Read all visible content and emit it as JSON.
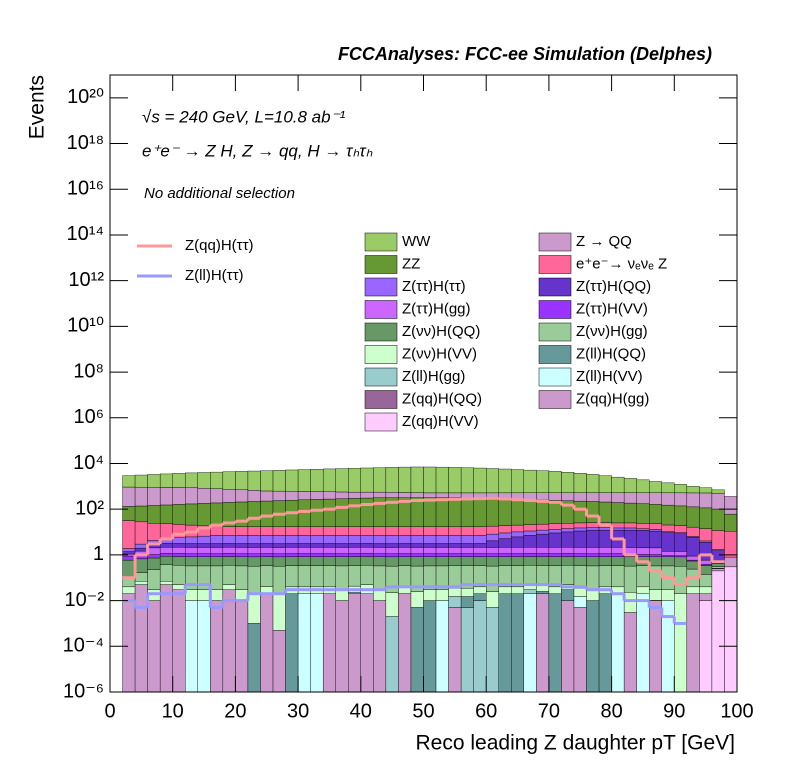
{
  "chart_data": {
    "type": "stacked_histogram",
    "title": "FCCAnalyses: FCC-ee Simulation (Delphes)",
    "annotations": [
      "√s = 240 GeV, L=10.8 ab⁻¹",
      "e⁺e⁻ → Z H, Z → qq, H → τₕτₕ",
      "No additional selection"
    ],
    "xlabel": "Reco leading Z daughter pT [GeV]",
    "ylabel": "Events",
    "log_y": true,
    "xlim": [
      0,
      100
    ],
    "ylim": [
      1e-06,
      1e+21
    ],
    "xticks": [
      0,
      10,
      20,
      30,
      40,
      50,
      60,
      70,
      80,
      90,
      100
    ],
    "yticks": [
      {
        "value": 1e-06,
        "label": "10⁻⁶"
      },
      {
        "value": 0.0001,
        "label": "10⁻⁴"
      },
      {
        "value": 0.01,
        "label": "10⁻²"
      },
      1,
      {
        "value": 100.0,
        "label": "10²"
      },
      {
        "value": 10000.0,
        "label": "10⁴"
      },
      {
        "value": 1000000.0,
        "label": "10⁶"
      },
      {
        "value": 100000000.0,
        "label": "10⁸"
      },
      {
        "value": 10000000000.0,
        "label": "10¹⁰"
      },
      {
        "value": 1000000000000.0,
        "label": "10¹²"
      },
      {
        "value": 100000000000000.0,
        "label": "10¹⁴"
      },
      {
        "value": 1e+16,
        "label": "10¹⁶"
      },
      {
        "value": 1e+18,
        "label": "10¹⁸"
      },
      {
        "value": 1e+20,
        "label": "10²⁰"
      }
    ],
    "bins": [
      0,
      2,
      4,
      6,
      8,
      10,
      12,
      14,
      16,
      18,
      20,
      22,
      24,
      26,
      28,
      30,
      32,
      34,
      36,
      38,
      40,
      42,
      44,
      46,
      48,
      50,
      52,
      54,
      56,
      58,
      60,
      62,
      64,
      66,
      68,
      70,
      72,
      74,
      76,
      78,
      80,
      82,
      84,
      86,
      88,
      90,
      92,
      94,
      96,
      98,
      100
    ],
    "series": [
      {
        "name": "WW",
        "color": "#99cc66",
        "values": [
          0,
          2000,
          2200,
          2400,
          2600,
          2800,
          3000,
          3200,
          3400,
          3600,
          3800,
          4000,
          4200,
          4400,
          4600,
          4800,
          5000,
          5200,
          5400,
          5600,
          5800,
          6000,
          6200,
          6400,
          6500,
          6500,
          6400,
          6200,
          6000,
          5800,
          5500,
          5200,
          4900,
          4600,
          4300,
          4000,
          3600,
          3200,
          2800,
          2400,
          2000,
          1700,
          1400,
          1100,
          900,
          700,
          500,
          350,
          200,
          0
        ]
      },
      {
        "name": "Z → QQ",
        "color": "#cc99cc",
        "values": [
          0,
          800,
          780,
          760,
          740,
          720,
          700,
          650,
          600,
          550,
          500,
          450,
          400,
          380,
          360,
          340,
          320,
          300,
          280,
          260,
          250,
          240,
          230,
          220,
          210,
          200,
          200,
          200,
          210,
          220,
          230,
          240,
          250,
          260,
          270,
          280,
          290,
          300,
          310,
          320,
          330,
          340,
          350,
          360,
          370,
          380,
          390,
          400,
          400,
          300
        ]
      },
      {
        "name": "ZZ",
        "color": "#669933",
        "values": [
          0,
          100,
          110,
          120,
          130,
          140,
          150,
          160,
          170,
          180,
          190,
          200,
          210,
          220,
          230,
          240,
          250,
          260,
          270,
          280,
          290,
          300,
          300,
          300,
          300,
          300,
          300,
          300,
          290,
          280,
          270,
          260,
          250,
          240,
          230,
          220,
          210,
          200,
          190,
          180,
          170,
          160,
          150,
          140,
          130,
          120,
          110,
          100,
          90,
          50
        ]
      },
      {
        "name": "e⁺e⁻→ νₑνₑ Z",
        "color": "#ff6699",
        "values": [
          0,
          30,
          25,
          20,
          18,
          16,
          14,
          12,
          11,
          10,
          10,
          10,
          10,
          10,
          10,
          10,
          10,
          10,
          10,
          10,
          10,
          10,
          10,
          10,
          10,
          10,
          10,
          10,
          10,
          10,
          10,
          10,
          10,
          10,
          10,
          10,
          10,
          10,
          10,
          10,
          10,
          10,
          10,
          10,
          10,
          10,
          10,
          10,
          10,
          10
        ]
      },
      {
        "name": "Z(ττ)H(ττ)",
        "color": "#9966ff",
        "values": [
          0,
          0.5,
          1,
          1.5,
          2,
          2.5,
          3,
          3.5,
          4,
          4,
          4,
          4,
          4,
          4,
          4,
          4,
          4,
          4,
          4,
          4,
          4,
          4,
          4,
          4,
          4,
          4,
          4,
          4,
          4,
          4,
          4,
          4,
          4,
          4,
          4,
          4,
          4,
          4,
          4,
          4,
          3,
          3,
          2,
          2,
          1,
          1,
          0.5,
          0.5,
          0.2,
          0
        ]
      },
      {
        "name": "Z(ττ)H(QQ)",
        "color": "#6633cc",
        "values": [
          0,
          0.3,
          0.5,
          0.8,
          1,
          1,
          1,
          1,
          1,
          1,
          1,
          1,
          1,
          1,
          1,
          1,
          1,
          1,
          1,
          1,
          1,
          1,
          1,
          1,
          1,
          1,
          1,
          1,
          1,
          1,
          2,
          3,
          4,
          5,
          6,
          7,
          8,
          9,
          10,
          10,
          10,
          10,
          10,
          9,
          8,
          7,
          5,
          3,
          1,
          0
        ]
      },
      {
        "name": "Z(ττ)H(gg)",
        "color": "#cc66ff",
        "values": [
          0,
          0.2,
          0.5,
          1,
          1,
          1,
          1,
          1,
          1,
          1,
          1,
          1,
          1,
          1,
          1,
          1,
          1,
          1,
          1,
          1,
          1,
          1,
          1,
          1,
          1,
          1,
          1,
          1,
          1,
          1,
          1,
          1,
          1,
          1,
          1,
          1,
          1,
          1,
          1,
          1,
          1,
          1,
          1,
          1,
          0.5,
          0.5,
          0.3,
          0.2,
          0.1,
          0
        ]
      },
      {
        "name": "Z(ττ)H(VV)",
        "color": "#9933ff",
        "values": [
          0,
          0.3,
          0.3,
          0.3,
          0.3,
          0.3,
          0.3,
          0.3,
          0.3,
          0.3,
          0.3,
          0.3,
          0.3,
          0.3,
          0.3,
          0.3,
          0.3,
          0.3,
          0.3,
          0.3,
          0.3,
          0.3,
          0.3,
          0.3,
          0.3,
          0.3,
          0.3,
          0.3,
          0.3,
          0.3,
          0.3,
          0.3,
          0.3,
          0.3,
          0.3,
          0.3,
          0.3,
          0.3,
          0.3,
          0.3,
          0.3,
          0.3,
          0.2,
          0.2,
          0.1,
          0.1,
          0.05,
          0.05,
          0.02,
          0
        ]
      },
      {
        "name": "Z(νν)H(QQ)",
        "color": "#669966",
        "values": [
          0,
          0.5,
          0.5,
          0.5,
          0.5,
          0.5,
          0.5,
          0.5,
          0.5,
          0.5,
          0.5,
          0.5,
          0.5,
          0.5,
          0.5,
          0.5,
          0.5,
          0.5,
          0.5,
          0.5,
          0.5,
          0.5,
          0.5,
          0.5,
          0.5,
          0.5,
          0.5,
          0.5,
          0.5,
          0.5,
          0.5,
          0.5,
          0.5,
          0.5,
          0.5,
          0.5,
          0.5,
          0.5,
          0.5,
          0.5,
          0.5,
          0.5,
          0.5,
          0.5,
          0.5,
          0.5,
          0.3,
          0.2,
          0.1,
          0
        ]
      },
      {
        "name": "Z(νν)H(gg)",
        "color": "#99cc99",
        "values": [
          0,
          0.05,
          0.1,
          0.2,
          0.3,
          0.3,
          0.3,
          0.3,
          0.3,
          0.3,
          0.3,
          0.3,
          0.3,
          0.3,
          0.3,
          0.3,
          0.3,
          0.3,
          0.3,
          0.3,
          0.3,
          0.3,
          0.3,
          0.3,
          0.3,
          0.3,
          0.3,
          0.3,
          0.3,
          0.3,
          0.3,
          0.3,
          0.3,
          0.3,
          0.3,
          0.3,
          0.3,
          0.3,
          0.3,
          0.3,
          0.3,
          0.3,
          0.3,
          0.3,
          0.3,
          0.3,
          0.2,
          0.1,
          0.05,
          0
        ]
      },
      {
        "name": "Z(νν)H(VV)",
        "color": "#ccffcc",
        "values": [
          0,
          0.02,
          0.02,
          0.02,
          0.02,
          0.02,
          0.02,
          0.02,
          0.02,
          0.02,
          0.02,
          0.02,
          0.02,
          0.02,
          0.02,
          0.02,
          0.02,
          0.02,
          0.02,
          0.02,
          0.02,
          0.02,
          0.02,
          0.02,
          0.02,
          0.02,
          0.02,
          0.02,
          0.02,
          0.02,
          0.02,
          0.02,
          0.02,
          0.02,
          0.02,
          0.02,
          0.02,
          0.02,
          0.02,
          0.02,
          0.02,
          0.02,
          0.02,
          0.02,
          0.02,
          0.02,
          0.02,
          0.02,
          0.01,
          0
        ]
      },
      {
        "name": "Z(ll)H(QQ)",
        "color": "#669999",
        "values": [
          0,
          0,
          0,
          0,
          0,
          0,
          0,
          0,
          0,
          0,
          0,
          0.001,
          0,
          0,
          0.02,
          0,
          0,
          0,
          0,
          0,
          0,
          0,
          0,
          0,
          0.005,
          0.01,
          0,
          0,
          0.01,
          0.01,
          0,
          0.02,
          0.02,
          0,
          0.005,
          0.02,
          0.02,
          0,
          0.01,
          0.02,
          0,
          0,
          0,
          0,
          0,
          0,
          0,
          0,
          0,
          0
        ]
      },
      {
        "name": "Z(ll)H(gg)",
        "color": "#99cccc",
        "values": [
          0,
          0,
          0,
          0,
          0,
          0,
          0,
          0,
          0,
          0,
          0,
          0,
          0,
          0,
          0,
          0,
          0,
          0,
          0,
          0.003,
          0,
          0,
          0.002,
          0,
          0,
          0,
          0,
          0.01,
          0.005,
          0.01,
          0.005,
          0,
          0,
          0.01,
          0,
          0,
          0,
          0,
          0,
          0,
          0,
          0,
          0,
          0,
          0,
          0,
          0,
          0,
          0,
          0
        ]
      },
      {
        "name": "Z(ll)H(VV)",
        "color": "#ccffff",
        "values": [
          0,
          0,
          0,
          0,
          0,
          0,
          0.01,
          0.01,
          0,
          0,
          0,
          0,
          0.001,
          0,
          0,
          0.02,
          0.02,
          0,
          0,
          0,
          0.01,
          0,
          0,
          0,
          0,
          0,
          0.01,
          0,
          0,
          0,
          0,
          0,
          0,
          0.02,
          0,
          0,
          0,
          0.01,
          0,
          0,
          0.02,
          0,
          0.02,
          0,
          0.01,
          0,
          0,
          0,
          0,
          0
        ]
      },
      {
        "name": "Z(qq)H(QQ)",
        "color": "#996699",
        "values": [
          0,
          0,
          0,
          0,
          0,
          0,
          0,
          0,
          0,
          0,
          0,
          0,
          0,
          0,
          0,
          0,
          0,
          0,
          0,
          0,
          0,
          0,
          0,
          0.0001,
          0,
          0,
          0,
          0,
          0,
          0,
          0,
          0,
          0,
          0,
          0,
          0,
          0,
          0,
          0,
          0,
          0,
          0,
          0,
          0.0002,
          0,
          0,
          0,
          0,
          0,
          0
        ]
      },
      {
        "name": "Z(qq)H(gg)",
        "color": "#cc99cc",
        "values": [
          0,
          0.02,
          0.05,
          0.01,
          0.05,
          0.03,
          0,
          0,
          0.01,
          0.03,
          0.01,
          0,
          0.02,
          0.0005,
          0,
          0,
          0,
          0.02,
          0.01,
          0.02,
          0.02,
          0.01,
          0,
          0.02,
          0,
          0,
          0,
          0.005,
          0,
          0,
          0,
          0,
          0,
          0,
          0.02,
          0,
          0.01,
          0.005,
          0,
          0,
          0,
          0.003,
          0,
          0.01,
          0,
          0,
          0.02,
          0.01,
          0.05,
          0.5
        ]
      },
      {
        "name": "Z(qq)H(VV)",
        "color": "#ffccff",
        "values": [
          0,
          0,
          0,
          0,
          0,
          0,
          0,
          0,
          0,
          0,
          0,
          0,
          0,
          0,
          0,
          0,
          0,
          0,
          0,
          0,
          0,
          0,
          0,
          0,
          0,
          0,
          0,
          0,
          0,
          0,
          0,
          0,
          0,
          0,
          0,
          0,
          0,
          0,
          0,
          0,
          0,
          0,
          0,
          0,
          0,
          0,
          0,
          0.01,
          0.2,
          0.3
        ]
      }
    ],
    "lines": [
      {
        "name": "Z(qq)H(ττ)",
        "color": "#ff9999",
        "values": [
          null,
          0.1,
          1,
          3,
          5,
          8,
          10,
          15,
          20,
          25,
          30,
          40,
          50,
          60,
          70,
          80,
          90,
          100,
          120,
          140,
          160,
          180,
          200,
          220,
          240,
          250,
          260,
          270,
          280,
          290,
          300,
          280,
          260,
          240,
          220,
          200,
          150,
          100,
          50,
          20,
          5,
          1,
          0.5,
          0.2,
          0.1,
          0.05,
          0.1,
          1,
          0.5,
          null
        ]
      },
      {
        "name": "Z(ll)H(ττ)",
        "color": "#9999ff",
        "values": [
          null,
          0.01,
          0.005,
          0.02,
          0.02,
          0.02,
          0.05,
          0.05,
          0.005,
          0.01,
          0.01,
          0.02,
          0.02,
          0.02,
          0.03,
          0.03,
          0.03,
          0.03,
          0.03,
          0.03,
          0.03,
          0.03,
          0.04,
          0.04,
          0.04,
          0.04,
          0.04,
          0.04,
          0.05,
          0.05,
          0.05,
          0.05,
          0.05,
          0.05,
          0.05,
          0.05,
          0.04,
          0.04,
          0.03,
          0.03,
          0.02,
          0.01,
          0.01,
          0.005,
          0.002,
          0.001,
          null,
          null,
          null,
          null
        ]
      }
    ]
  }
}
